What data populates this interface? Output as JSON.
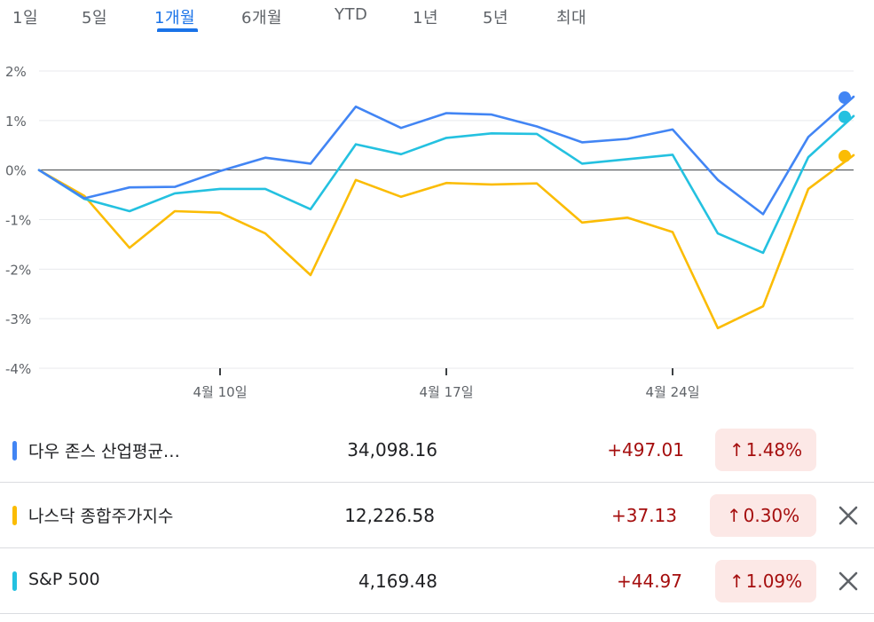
{
  "tabs": [
    {
      "label": "1일",
      "active": false
    },
    {
      "label": "5일",
      "active": false
    },
    {
      "label": "1개월",
      "active": true
    },
    {
      "label": "6개월",
      "active": false
    },
    {
      "label": "YTD",
      "active": false
    },
    {
      "label": "1년",
      "active": false
    },
    {
      "label": "5년",
      "active": false
    },
    {
      "label": "최대",
      "active": false
    }
  ],
  "chart_data": {
    "type": "line",
    "ylim": [
      -4,
      2
    ],
    "yticks": [
      "2%",
      "1%",
      "0%",
      "-1%",
      "-2%",
      "-3%",
      "-4%"
    ],
    "ytick_values": [
      2,
      1,
      0,
      -1,
      -2,
      -3,
      -4
    ],
    "xtick_labels": [
      "4월 10일",
      "4월 17일",
      "4월 24일"
    ],
    "xtick_index": [
      4,
      9,
      14
    ],
    "grid": true,
    "series": [
      {
        "name": "다우 존스 산업평균…",
        "color": "#4285f4",
        "values": [
          0,
          -0.57,
          -0.35,
          -0.34,
          -0.02,
          0.25,
          0.13,
          1.28,
          0.85,
          1.15,
          1.12,
          0.88,
          0.56,
          0.63,
          0.82,
          -0.2,
          -0.89,
          0.67,
          1.48
        ]
      },
      {
        "name": "나스닥 종합주가지수",
        "color": "#fbbc04",
        "values": [
          0,
          -0.52,
          -1.57,
          -0.83,
          -0.86,
          -1.28,
          -2.12,
          -0.2,
          -0.54,
          -0.26,
          -0.29,
          -0.27,
          -1.06,
          -0.96,
          -1.25,
          -3.19,
          -2.75,
          -0.38,
          0.3
        ]
      },
      {
        "name": "S&P 500",
        "color": "#24c1e0",
        "values": [
          0,
          -0.58,
          -0.83,
          -0.47,
          -0.38,
          -0.38,
          -0.79,
          0.52,
          0.32,
          0.65,
          0.74,
          0.73,
          0.13,
          0.22,
          0.31,
          -1.28,
          -1.67,
          0.26,
          1.09
        ]
      }
    ]
  },
  "rows": [
    {
      "name": "다우 존스 산업평균…",
      "color": "#4285f4",
      "value": "34,098.16",
      "change": "+497.01",
      "pct": "1.48%",
      "arrow": "↑",
      "removable": false
    },
    {
      "name": "나스닥 종합주가지수",
      "color": "#fbbc04",
      "value": "12,226.58",
      "change": "+37.13",
      "pct": "0.30%",
      "arrow": "↑",
      "removable": true
    },
    {
      "name": "S&P 500",
      "color": "#24c1e0",
      "value": "4,169.48",
      "change": "+44.97",
      "pct": "1.09%",
      "arrow": "↑",
      "removable": true
    }
  ]
}
